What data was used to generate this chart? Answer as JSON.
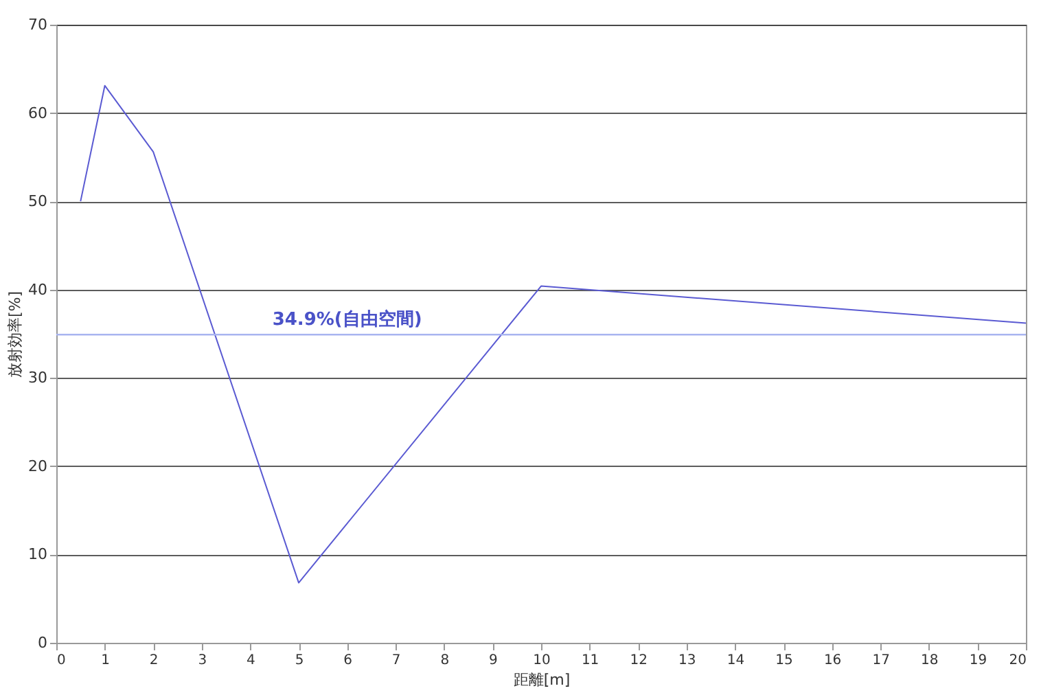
{
  "chart_data": {
    "type": "line",
    "xlabel": "距離[m]",
    "ylabel": "放射効率[%]",
    "x": [
      0.5,
      1,
      2,
      5,
      10,
      20
    ],
    "series": [
      {
        "color": "#5a5ad2",
        "values": [
          50,
          63.1,
          55.6,
          6.8,
          40.4,
          36.2
        ]
      }
    ],
    "xlim": [
      0,
      20
    ],
    "xticks": [
      0,
      1,
      2,
      3,
      4,
      5,
      6,
      7,
      8,
      9,
      10,
      11,
      12,
      13,
      14,
      15,
      16,
      17,
      18,
      19,
      20
    ],
    "ylim": [
      0,
      70
    ],
    "yticks": [
      0,
      10,
      20,
      30,
      40,
      50,
      60,
      70
    ],
    "grid": "y",
    "marker": "none",
    "line_style": "solid",
    "ref_lines": [
      {
        "axis": "y",
        "value": 34.9,
        "label": "34.9%(自由空間)",
        "color": "#a8b4f0"
      }
    ]
  }
}
